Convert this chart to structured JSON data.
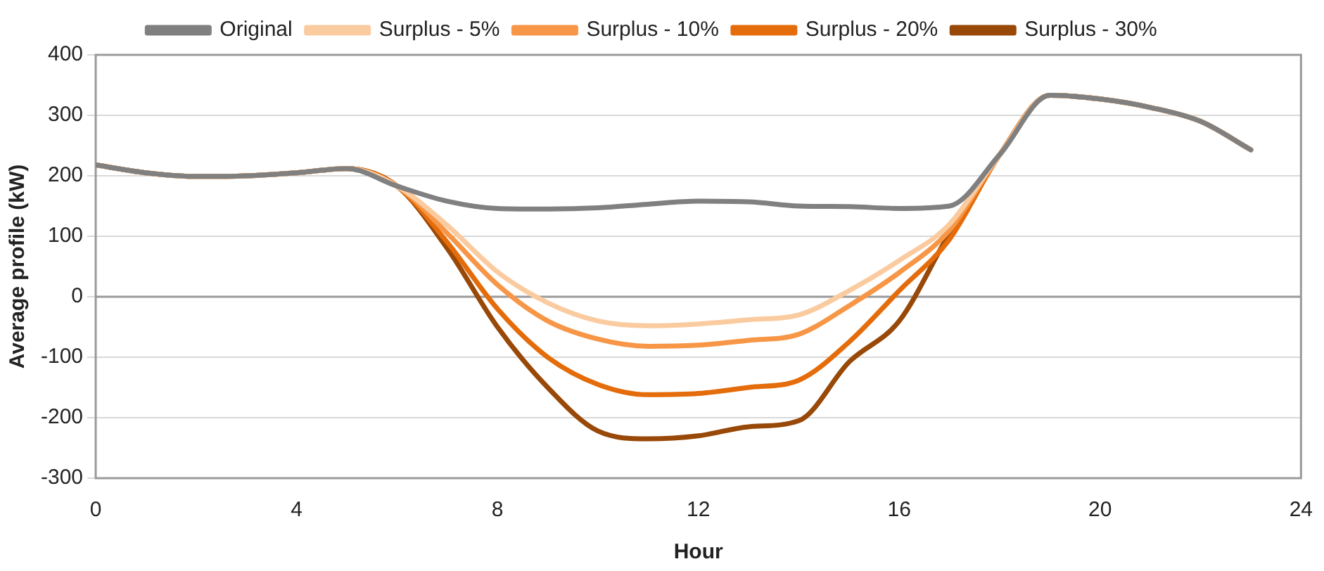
{
  "chart_data": {
    "type": "line",
    "xlabel": "Hour",
    "ylabel": "Average profile (kW)",
    "x": [
      0,
      1,
      2,
      3,
      4,
      5,
      6,
      7,
      8,
      9,
      10,
      11,
      12,
      13,
      14,
      15,
      16,
      17,
      18,
      19,
      20,
      21,
      22,
      23
    ],
    "series": [
      {
        "name": "Original",
        "color": "#808080",
        "values": [
          218,
          205,
          199,
          200,
          205,
          212,
          183,
          158,
          146,
          145,
          147,
          153,
          158,
          157,
          150,
          149,
          146,
          150,
          235,
          333,
          327,
          313,
          290,
          243
        ]
      },
      {
        "name": "Surplus - 5%",
        "color": "#fbcba0",
        "values": [
          218,
          205,
          199,
          200,
          205,
          212,
          183,
          118,
          41,
          -10,
          -40,
          -48,
          -45,
          -38,
          -30,
          10,
          60,
          120,
          235,
          333,
          327,
          313,
          290,
          243
        ]
      },
      {
        "name": "Surplus - 10%",
        "color": "#f79646",
        "values": [
          218,
          205,
          199,
          200,
          205,
          212,
          183,
          105,
          20,
          -40,
          -70,
          -82,
          -80,
          -72,
          -62,
          -15,
          40,
          110,
          235,
          333,
          327,
          313,
          290,
          243
        ]
      },
      {
        "name": "Surplus - 20%",
        "color": "#e46c0a",
        "values": [
          218,
          205,
          199,
          200,
          205,
          212,
          183,
          90,
          -20,
          -100,
          -145,
          -162,
          -160,
          -150,
          -138,
          -75,
          10,
          95,
          235,
          333,
          327,
          313,
          290,
          243
        ]
      },
      {
        "name": "Surplus - 30%",
        "color": "#984807",
        "values": [
          218,
          205,
          199,
          200,
          205,
          212,
          183,
          80,
          -50,
          -150,
          -222,
          -235,
          -230,
          -215,
          -205,
          -108,
          -40,
          105,
          235,
          333,
          327,
          313,
          290,
          243
        ]
      }
    ],
    "xlim": [
      0,
      24
    ],
    "xticks": [
      0,
      4,
      8,
      12,
      16,
      20,
      24
    ],
    "ylim": [
      -300,
      400
    ],
    "yticks": [
      -300,
      -200,
      -100,
      0,
      100,
      200,
      300,
      400
    ],
    "grid": "y",
    "legend": "top",
    "marker": "none",
    "line_style": "solid"
  }
}
